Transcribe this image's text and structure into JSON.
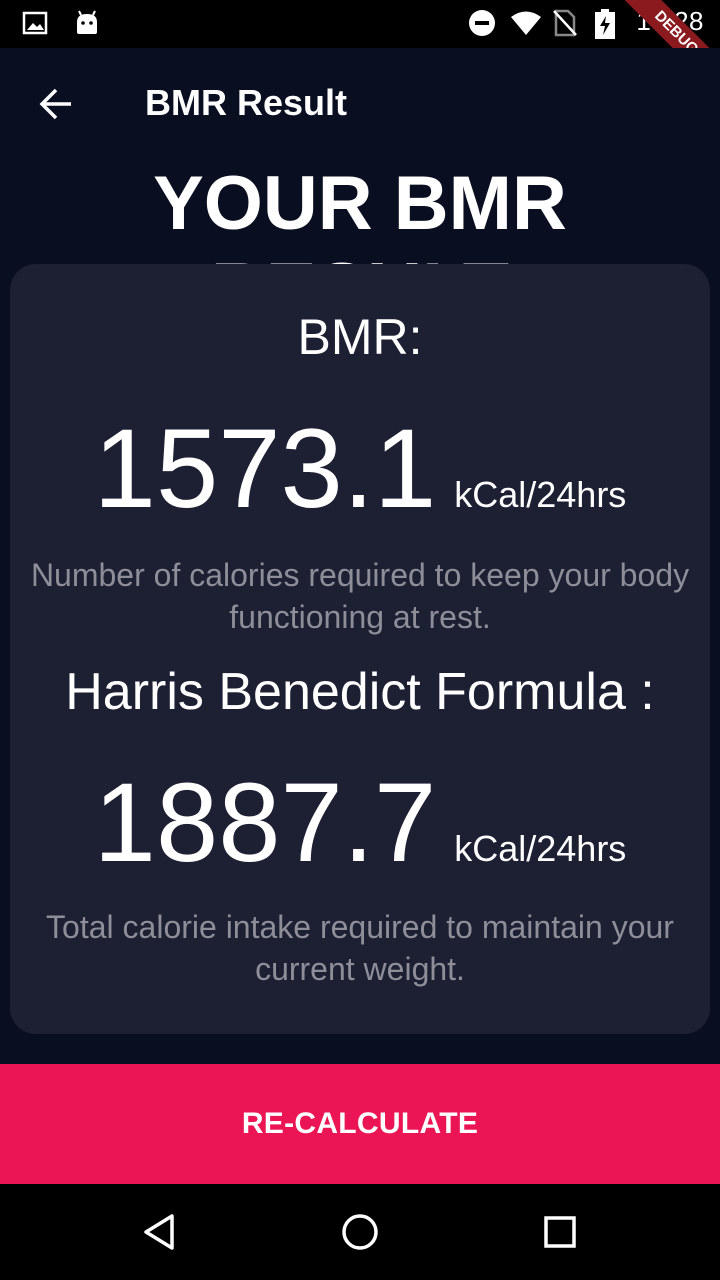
{
  "status_bar": {
    "time": "17:28",
    "left_icons": [
      "image-icon",
      "android-icon"
    ],
    "right_icons": [
      "do-not-disturb-icon",
      "wifi-icon",
      "no-sim-icon",
      "battery-charging-icon"
    ],
    "debug_banner": "DEBUG"
  },
  "app_bar": {
    "title": "BMR Result",
    "back_icon": "arrow-back-icon"
  },
  "page": {
    "heading": "YOUR BMR RESULT"
  },
  "result": {
    "bmr_label": "BMR:",
    "bmr_value": "1573.1",
    "bmr_unit": "kCal/24hrs",
    "bmr_description": "Number of calories required to keep your body functioning at rest.",
    "harris_label": "Harris Benedict Formula :",
    "harris_value": "1887.7",
    "harris_unit": "kCal/24hrs",
    "harris_description": "Total calorie intake required to maintain your current weight."
  },
  "actions": {
    "recalculate_label": "RE-CALCULATE"
  },
  "nav_bar": {
    "buttons": [
      "back-triangle-icon",
      "home-circle-icon",
      "recents-square-icon"
    ]
  },
  "colors": {
    "background": "#0a0e21",
    "card": "#1d1f33",
    "accent": "#eb1555",
    "muted_text": "#8d8e98"
  }
}
